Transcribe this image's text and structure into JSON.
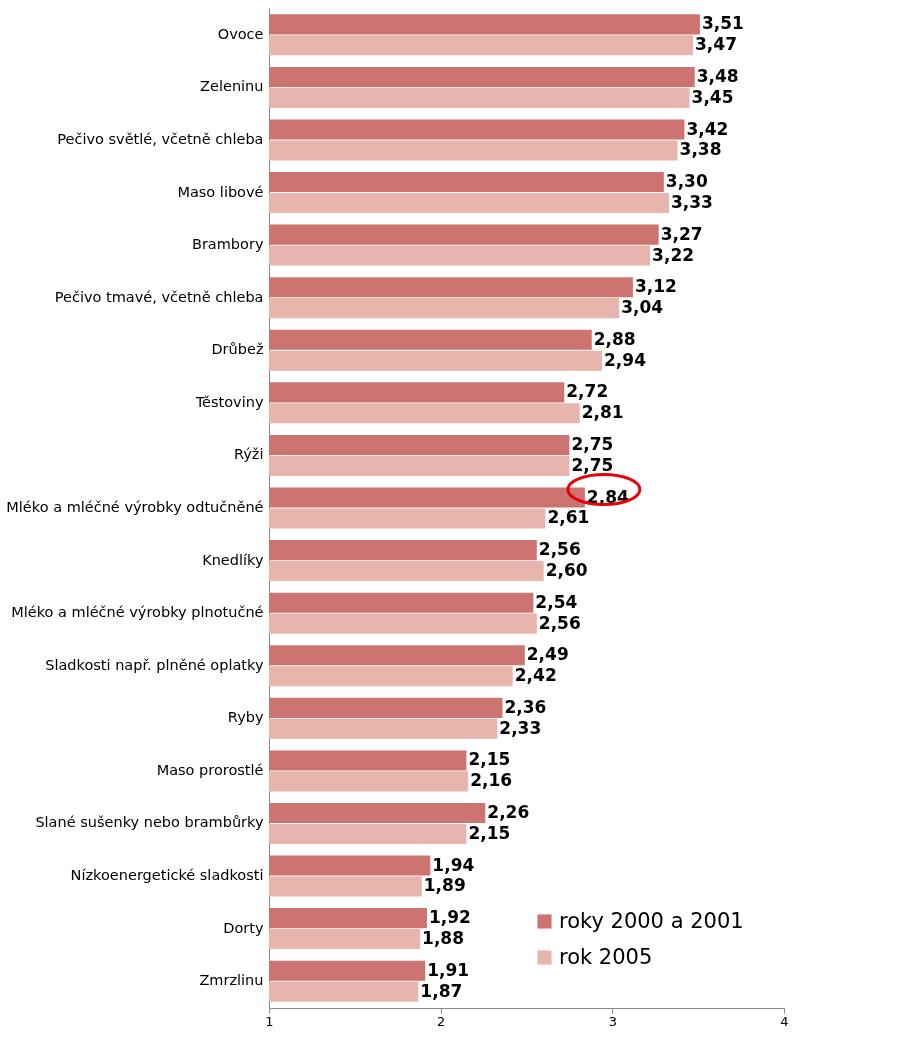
{
  "chart_data": {
    "type": "bar",
    "orientation": "horizontal",
    "legend": "bottom right",
    "grid": false,
    "categories": [
      "Ovoce",
      "Zeleninu",
      "Pečivo světlé, včetně chleba",
      "Maso libové",
      "Brambory",
      "Pečivo tmavé, včetně chleba",
      "Drůbež",
      "Těstoviny",
      "Rýži",
      "Mléko a mléčné výrobky odtučněné",
      "Knedlíky",
      "Mléko a mléčné výrobky plnotučné",
      "Sladkosti např. plněné oplatky",
      "Ryby",
      "Maso prorostlé",
      "Slané sušenky nebo brambůrky",
      "Nízkoenergetické sladkosti",
      "Dorty",
      "Zmrzlinu"
    ],
    "xlim": [
      1,
      4
    ],
    "xticks": [
      1,
      2,
      3,
      4
    ],
    "series": [
      {
        "name": "roky 2000 a 2001",
        "color": "#cd7370",
        "values": [
          3.51,
          3.48,
          3.42,
          3.3,
          3.27,
          3.12,
          2.88,
          2.72,
          2.75,
          2.84,
          2.56,
          2.54,
          2.49,
          2.36,
          2.15,
          2.26,
          1.94,
          1.92,
          1.91
        ],
        "value_labels": [
          "3,51",
          "3,48",
          "3,42",
          "3,30",
          "3,27",
          "3,12",
          "2,88",
          "2,72",
          "2,75",
          "2,84",
          "2,56",
          "2,54",
          "2,49",
          "2,36",
          "2,15",
          "2,26",
          "1,94",
          "1,92",
          "1,91"
        ]
      },
      {
        "name": "rok 2005",
        "color": "#e8b4ae",
        "values": [
          3.47,
          3.45,
          3.38,
          3.33,
          3.22,
          3.04,
          2.94,
          2.81,
          2.75,
          2.61,
          2.6,
          2.56,
          2.42,
          2.33,
          2.16,
          2.15,
          1.89,
          1.88,
          1.87
        ],
        "value_labels": [
          "3,47",
          "3,45",
          "3,38",
          "3,33",
          "3,22",
          "3,04",
          "2,94",
          "2,81",
          "2,75",
          "2,61",
          "2,60",
          "2,56",
          "2,42",
          "2,33",
          "2,16",
          "2,15",
          "1,89",
          "1,88",
          "1,87"
        ]
      }
    ]
  }
}
